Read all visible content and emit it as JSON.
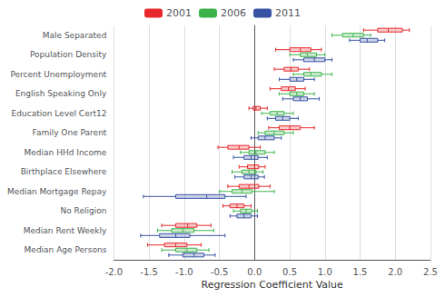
{
  "chart_data": {
    "type": "boxplot",
    "orientation": "horizontal",
    "xlabel": "Regression Coefficient Value",
    "categories": [
      "Male Separated",
      "Population Density",
      "Percent Unemployment",
      "English Speaking Only",
      "Education Level Cert12",
      "Family One Parent",
      "Median HHd Income",
      "Birthplace Elsewhere",
      "Median Mortgage Repay",
      "No Religion",
      "Median Rent Weekly",
      "Median Age Persons"
    ],
    "series": [
      {
        "name": "2001",
        "color": "#e8292b",
        "values": [
          [
            1.55,
            1.75,
            1.9,
            2.1,
            2.2
          ],
          [
            0.3,
            0.5,
            0.65,
            0.8,
            0.95
          ],
          [
            0.28,
            0.42,
            0.52,
            0.62,
            0.78
          ],
          [
            0.22,
            0.38,
            0.48,
            0.58,
            0.72
          ],
          [
            -0.08,
            -0.02,
            0.02,
            0.08,
            0.18
          ],
          [
            0.2,
            0.35,
            0.5,
            0.65,
            0.85
          ],
          [
            -0.52,
            -0.38,
            -0.22,
            -0.08,
            0.08
          ],
          [
            -0.22,
            -0.1,
            0.0,
            0.06,
            0.15
          ],
          [
            -0.38,
            -0.22,
            -0.08,
            0.06,
            0.22
          ],
          [
            -0.45,
            -0.35,
            -0.25,
            -0.15,
            -0.05
          ],
          [
            -1.32,
            -1.12,
            -0.95,
            -0.82,
            -0.62
          ],
          [
            -1.52,
            -1.28,
            -1.12,
            -0.96,
            -0.76
          ]
        ]
      },
      {
        "name": "2006",
        "color": "#3cb34a",
        "values": [
          [
            1.1,
            1.25,
            1.4,
            1.55,
            1.65
          ],
          [
            0.5,
            0.65,
            0.75,
            0.88,
            1.0
          ],
          [
            0.55,
            0.7,
            0.8,
            0.95,
            1.1
          ],
          [
            0.35,
            0.5,
            0.6,
            0.7,
            0.85
          ],
          [
            0.1,
            0.22,
            0.32,
            0.42,
            0.55
          ],
          [
            0.05,
            0.15,
            0.28,
            0.42,
            0.55
          ],
          [
            -0.2,
            -0.08,
            0.02,
            0.15,
            0.28
          ],
          [
            -0.32,
            -0.18,
            -0.08,
            0.02,
            0.12
          ],
          [
            -0.5,
            -0.32,
            -0.18,
            -0.04,
            0.28
          ],
          [
            -0.3,
            -0.2,
            -0.12,
            -0.04,
            0.04
          ],
          [
            -1.38,
            -1.18,
            -1.02,
            -0.86,
            -0.58
          ],
          [
            -1.32,
            -1.12,
            -0.96,
            -0.82,
            -0.65
          ]
        ]
      },
      {
        "name": "2011",
        "color": "#3753a4",
        "values": [
          [
            1.35,
            1.5,
            1.6,
            1.75,
            1.85
          ],
          [
            0.55,
            0.7,
            0.85,
            1.0,
            1.1
          ],
          [
            0.35,
            0.5,
            0.6,
            0.7,
            0.85
          ],
          [
            0.4,
            0.55,
            0.65,
            0.75,
            0.92
          ],
          [
            0.18,
            0.3,
            0.4,
            0.5,
            0.62
          ],
          [
            -0.05,
            0.05,
            0.15,
            0.28,
            0.38
          ],
          [
            -0.3,
            -0.15,
            -0.05,
            0.05,
            0.18
          ],
          [
            -0.28,
            -0.15,
            -0.05,
            0.05,
            0.14
          ],
          [
            -1.58,
            -1.12,
            -0.68,
            -0.42,
            -0.12
          ],
          [
            -0.35,
            -0.25,
            -0.15,
            -0.05,
            0.04
          ],
          [
            -1.62,
            -1.35,
            -1.12,
            -0.92,
            -0.42
          ],
          [
            -1.22,
            -1.02,
            -0.86,
            -0.72,
            -0.56
          ]
        ]
      }
    ],
    "xlim": [
      -2.0,
      2.5
    ],
    "xticks": [
      {
        "value": -2.0,
        "label": "-2.0"
      },
      -1.5,
      {
        "value": -1.0,
        "label": "-1.0"
      },
      -0.5,
      {
        "value": 0.0,
        "label": "0.0"
      },
      0.5,
      {
        "value": 1.0,
        "label": "1.0"
      },
      1.5,
      {
        "value": 2.0,
        "label": "2.0"
      },
      2.5
    ],
    "grid": true,
    "legend": "top"
  }
}
